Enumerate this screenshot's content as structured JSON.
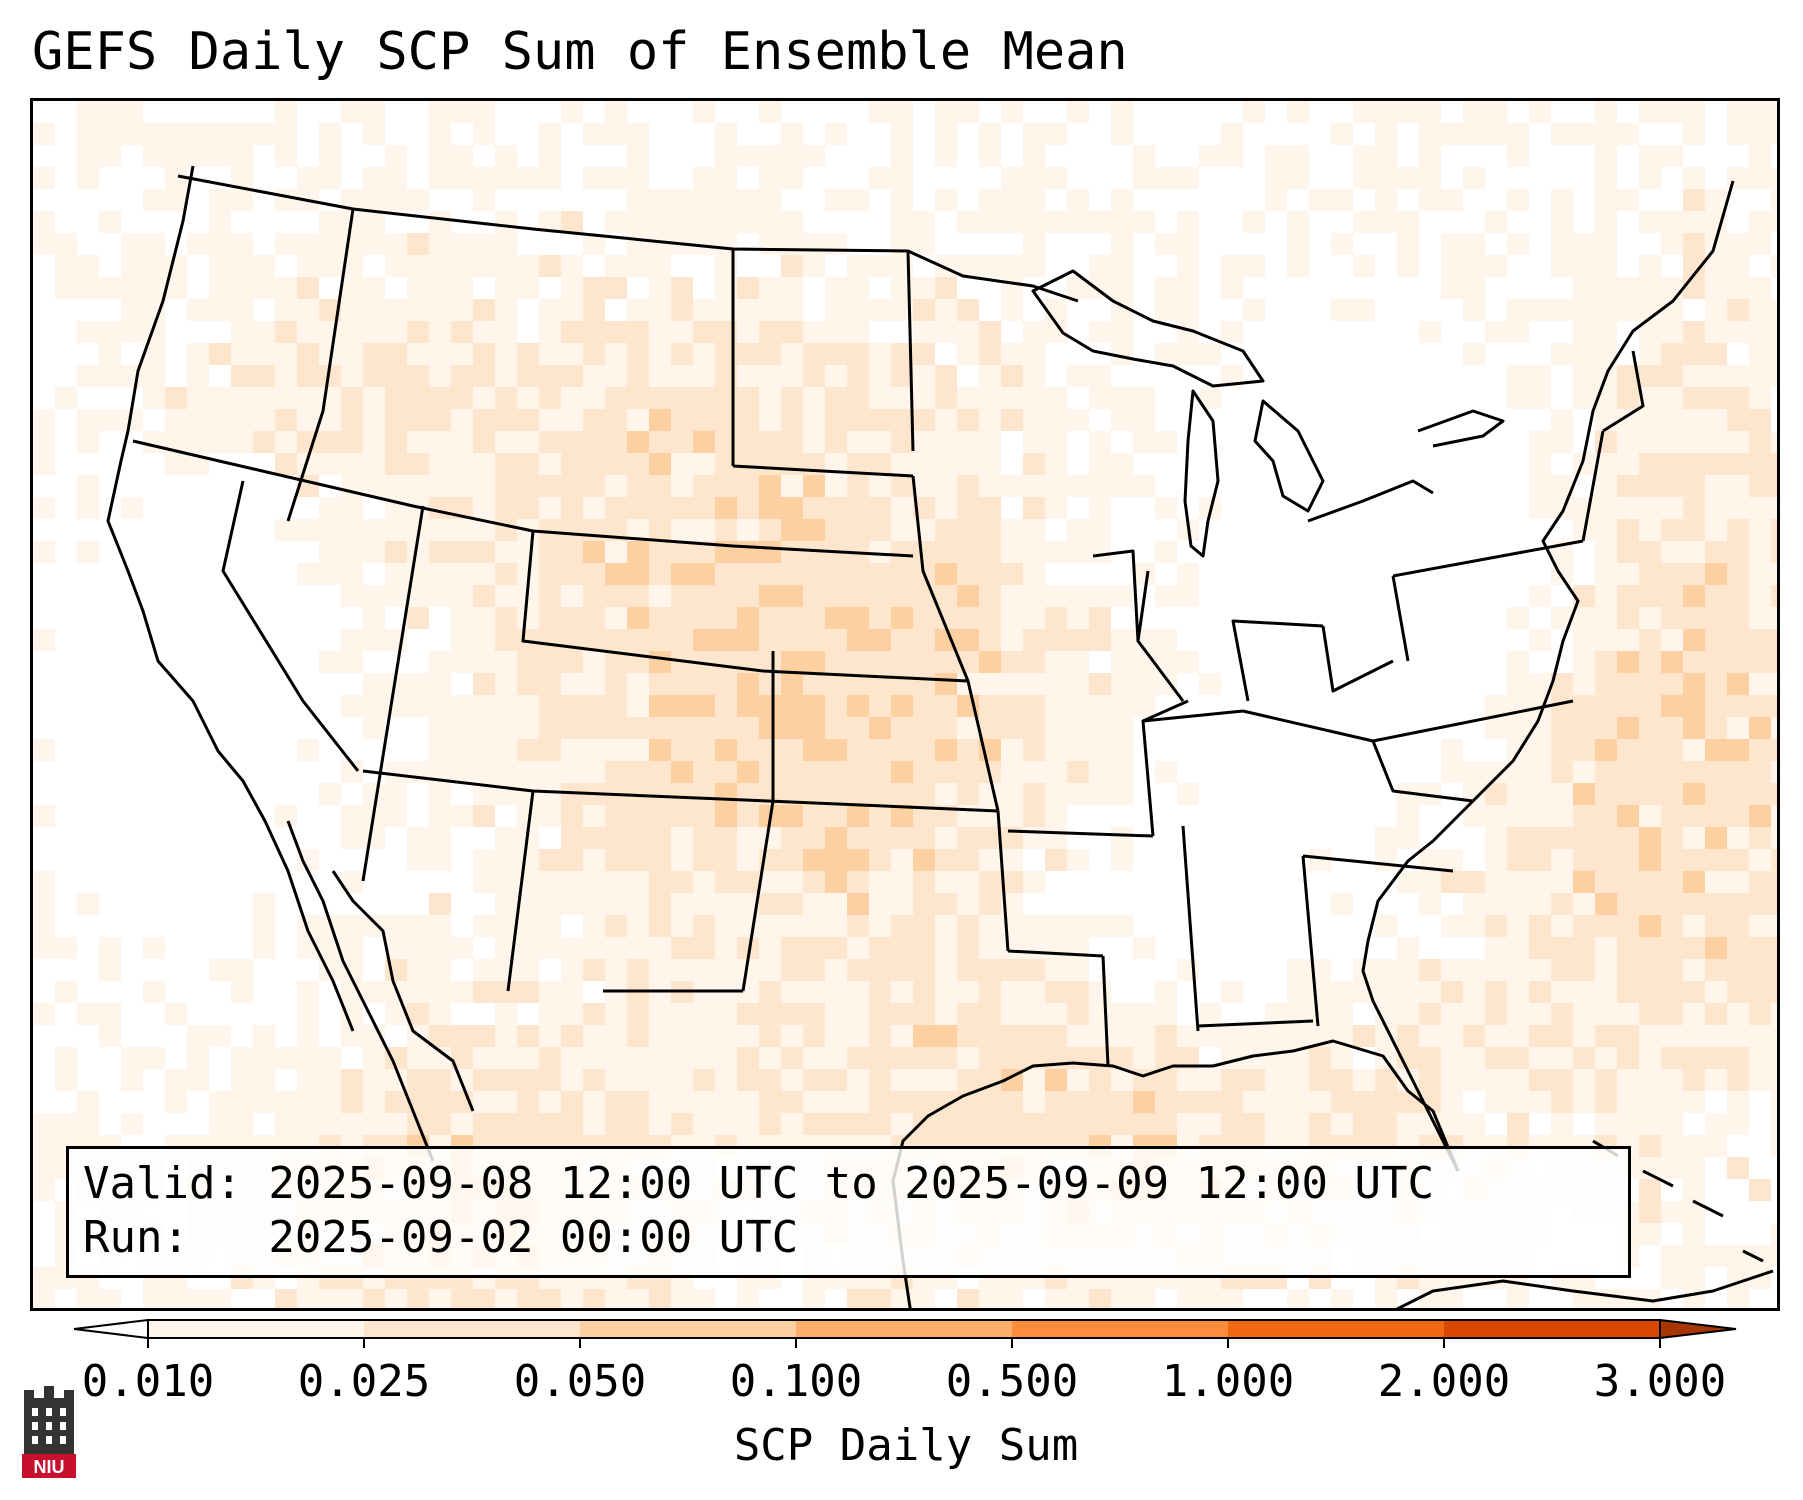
{
  "title": "GEFS Daily SCP Sum of Ensemble Mean",
  "info": {
    "valid_line": "Valid: 2025-09-08 12:00 UTC to 2025-09-09 12:00 UTC",
    "run_line": "Run:   2025-09-02 00:00 UTC"
  },
  "colorbar": {
    "label": "SCP Daily Sum",
    "ticks": [
      "0.010",
      "0.025",
      "0.050",
      "0.100",
      "0.500",
      "1.000",
      "2.000",
      "3.000"
    ],
    "colors": [
      "#fff5eb",
      "#fee6ce",
      "#fdd0a2",
      "#fdae6b",
      "#fd8d3c",
      "#f16913",
      "#d94801",
      "#a63603"
    ]
  },
  "logo": {
    "text": "NIU"
  },
  "map": {
    "projection": "lambert-conformal",
    "region": "CONUS",
    "field_level_colors": [
      "#ffffff",
      "#fff5eb",
      "#fee6ce",
      "#fdd0a2",
      "#fdae6b",
      "#fd8d3c",
      "#f16913",
      "#d94801"
    ]
  }
}
